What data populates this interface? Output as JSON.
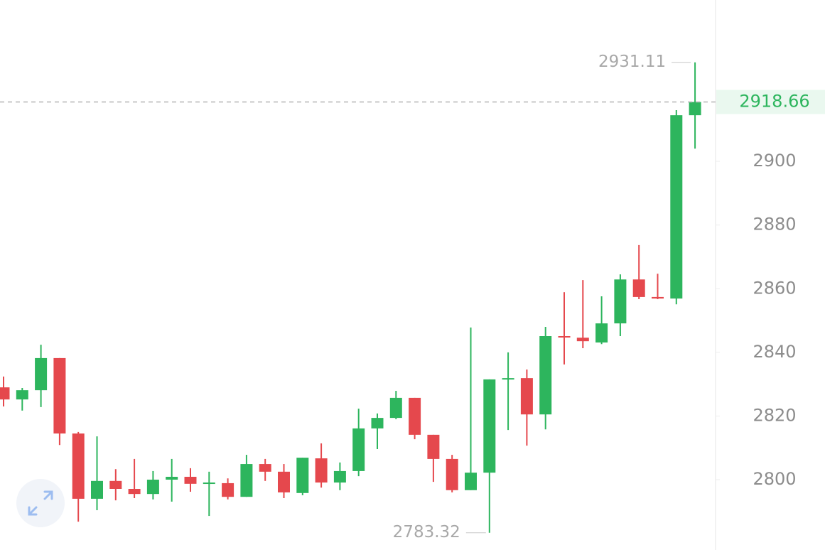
{
  "chart_data": {
    "type": "candlestick",
    "up_color": "#2db55d",
    "down_color": "#e5484d",
    "open": [
      2829.0,
      2825.2,
      2828.1,
      2838.2,
      2814.5,
      2794.0,
      2799.6,
      2797.1,
      2795.5,
      2800.0,
      2800.9,
      2798.7,
      2798.9,
      2794.6,
      2804.9,
      2802.5,
      2795.8,
      2806.7,
      2799.1,
      2802.7,
      2816.1,
      2819.4,
      2825.7,
      2814.1,
      2806.5,
      2796.7,
      2802.2,
      2831.5,
      2831.9,
      2820.5,
      2845.1,
      2844.6,
      2843.1,
      2849.1,
      2862.9,
      2857.4,
      2856.9,
      2914.5
    ],
    "high": [
      2832.4,
      2828.8,
      2842.4,
      2838.2,
      2815.0,
      2813.6,
      2803.3,
      2806.5,
      2802.7,
      2806.5,
      2803.6,
      2802.5,
      2800.4,
      2807.8,
      2806.5,
      2804.9,
      2806.9,
      2811.4,
      2805.4,
      2822.3,
      2820.8,
      2827.9,
      2825.7,
      2814.1,
      2807.8,
      2847.8,
      2831.5,
      2840.0,
      2834.6,
      2848.0,
      2858.9,
      2862.7,
      2857.6,
      2864.5,
      2873.7,
      2864.7,
      2916.1,
      2931.11
    ],
    "low": [
      2823.0,
      2821.7,
      2822.8,
      2810.9,
      2786.8,
      2790.4,
      2793.5,
      2794.2,
      2793.8,
      2793.1,
      2796.2,
      2788.6,
      2793.8,
      2794.6,
      2799.6,
      2794.2,
      2795.1,
      2797.5,
      2796.7,
      2801.1,
      2809.6,
      2819.0,
      2812.7,
      2799.3,
      2796.0,
      2796.7,
      2783.32,
      2815.6,
      2810.7,
      2815.8,
      2836.2,
      2841.3,
      2842.6,
      2845.1,
      2856.7,
      2856.7,
      2855.1,
      2904.0
    ],
    "close": [
      2825.2,
      2828.1,
      2838.2,
      2814.5,
      2794.0,
      2799.6,
      2797.1,
      2795.5,
      2800.0,
      2800.9,
      2798.7,
      2799.1,
      2794.6,
      2804.9,
      2802.5,
      2796.0,
      2806.9,
      2799.1,
      2802.7,
      2816.1,
      2819.4,
      2825.7,
      2814.1,
      2806.5,
      2796.7,
      2802.2,
      2831.5,
      2831.9,
      2820.5,
      2845.1,
      2844.9,
      2843.5,
      2849.1,
      2862.9,
      2857.4,
      2856.9,
      2914.5,
      2918.66
    ],
    "ylim": [
      2777.9,
      2950.7
    ],
    "yticks": [
      2800,
      2820,
      2840,
      2860,
      2880,
      2900
    ],
    "axis_side": "right"
  }
}
